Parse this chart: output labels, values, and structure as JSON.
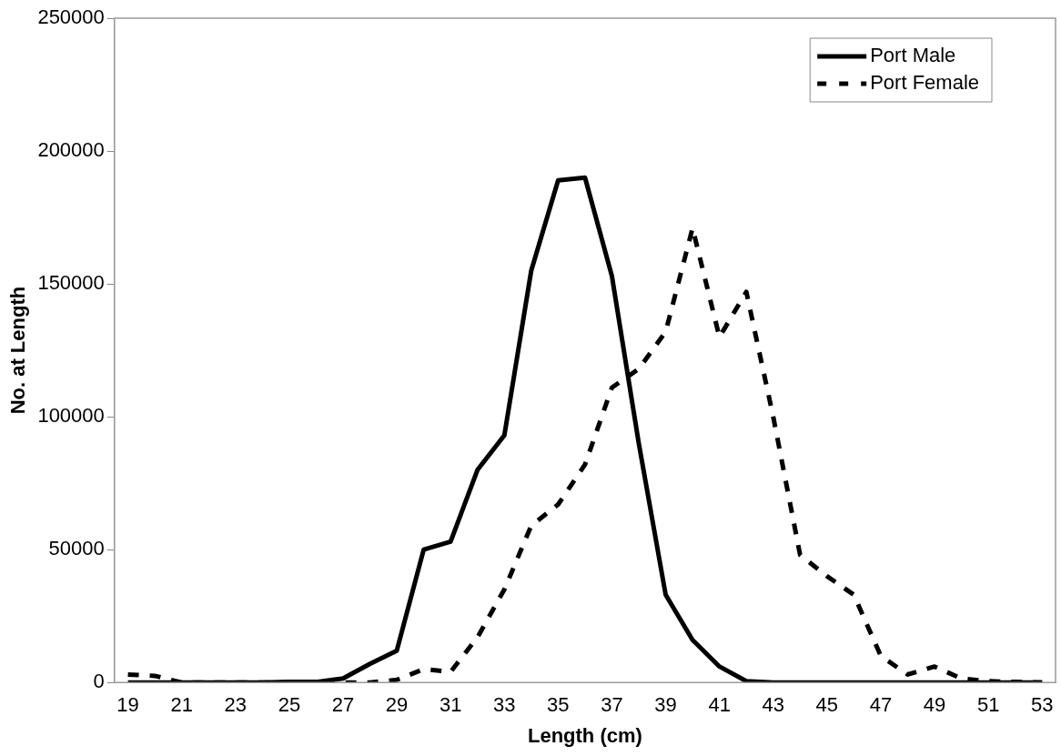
{
  "chart_data": {
    "type": "line",
    "xlabel": "Length (cm)",
    "ylabel": "No. at Length",
    "categories": [
      "19",
      null,
      "21",
      null,
      "23",
      null,
      "25",
      null,
      "27",
      null,
      "29",
      null,
      "31",
      null,
      "33",
      null,
      "35",
      null,
      "37",
      null,
      "39",
      null,
      "41",
      null,
      "43",
      null,
      "45",
      null,
      "47",
      null,
      "49",
      null,
      "51",
      null,
      "53"
    ],
    "series": [
      {
        "name": "Port Male",
        "color": "#000000",
        "line_style": "solid",
        "values": [
          0,
          0,
          0,
          0,
          0,
          0,
          200,
          200,
          1500,
          7000,
          12000,
          50000,
          53000,
          80000,
          93000,
          155000,
          189000,
          190000,
          153000,
          90000,
          33000,
          16000,
          6000,
          500,
          0,
          0,
          0,
          0,
          0,
          0,
          0,
          0,
          0,
          0,
          0
        ]
      },
      {
        "name": "Port Female",
        "color": "#000000",
        "line_style": "dashed",
        "values": [
          3000,
          2500,
          0,
          0,
          0,
          0,
          0,
          0,
          0,
          0,
          1000,
          5000,
          4000,
          17000,
          35000,
          59000,
          67000,
          82000,
          111000,
          118000,
          132000,
          171000,
          130000,
          147000,
          100000,
          48000,
          40000,
          33000,
          10000,
          3000,
          6000,
          1500,
          500,
          200,
          0
        ]
      }
    ],
    "ylim": [
      0,
      250000
    ],
    "yticks": [
      0,
      50000,
      100000,
      150000,
      200000,
      250000
    ],
    "grid": false,
    "legend": "top right"
  }
}
